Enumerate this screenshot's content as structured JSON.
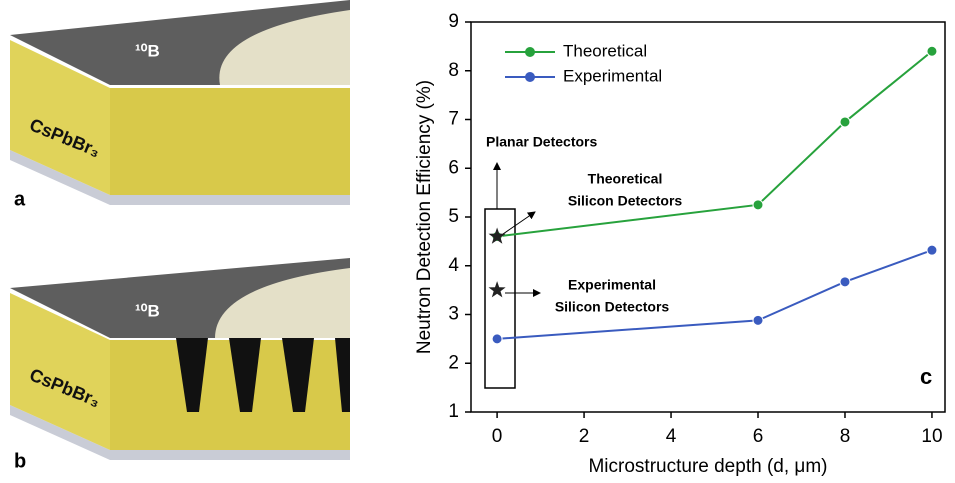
{
  "panels": [
    {
      "label": "a",
      "layer_top": "¹⁰B",
      "layer_body": "CsPbBr₃"
    },
    {
      "label": "b",
      "layer_top": "¹⁰B",
      "layer_body": "CsPbBr₃"
    }
  ],
  "chart_data": {
    "type": "line",
    "panel_label": "c",
    "x_label": "Microstructure depth (d, μm)",
    "y_label": "Neutron Detection Efficiency (%)",
    "x": [
      0,
      6,
      8,
      10
    ],
    "series": [
      {
        "name": "Theoretical",
        "color": "#27a23c",
        "values": [
          4.6,
          5.25,
          6.95,
          8.4
        ]
      },
      {
        "name": "Experimental",
        "color": "#3a5bbf",
        "values": [
          2.5,
          2.88,
          3.67,
          4.32
        ]
      }
    ],
    "stars": {
      "x": [
        0,
        0
      ],
      "y": [
        4.6,
        3.5
      ]
    },
    "annotations": [
      "Planar Detectors",
      "Theoretical",
      "Silicon Detectors",
      "Experimental",
      "Silicon Detectors"
    ],
    "xlim": [
      -0.6,
      10.3
    ],
    "ylim": [
      1,
      9
    ],
    "xticks": [
      0,
      2,
      4,
      6,
      8,
      10
    ],
    "yticks": [
      1,
      2,
      3,
      4,
      5,
      6,
      7,
      8,
      9
    ],
    "legend": "upper-left"
  }
}
